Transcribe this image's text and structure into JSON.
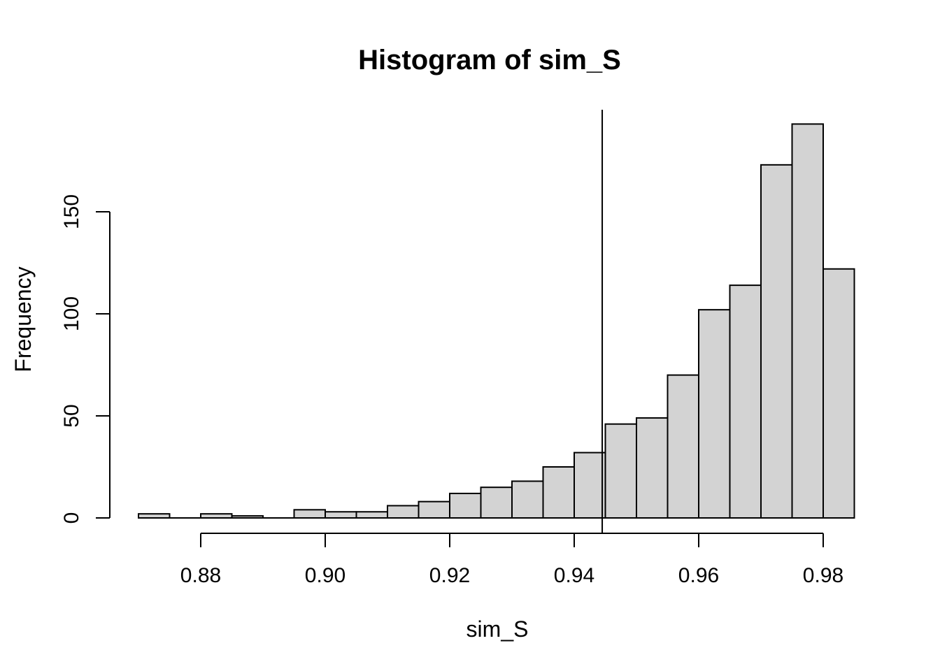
{
  "figure": {
    "title": "Histogram of sim_S",
    "xlabel": "sim_S",
    "ylabel": "Frequency"
  },
  "chart_data": {
    "type": "bar",
    "subtype": "histogram",
    "title": "Histogram of sim_S",
    "xlabel": "sim_S",
    "ylabel": "Frequency",
    "bin_start": 0.87,
    "bin_width": 0.005,
    "counts": [
      2,
      0,
      2,
      1,
      0,
      4,
      3,
      3,
      6,
      8,
      12,
      15,
      18,
      25,
      32,
      46,
      49,
      70,
      102,
      114,
      173,
      193,
      122
    ],
    "total_n": 1000,
    "x_ticks": [
      {
        "value": 0.88,
        "label": "0.88"
      },
      {
        "value": 0.9,
        "label": "0.90"
      },
      {
        "value": 0.92,
        "label": "0.92"
      },
      {
        "value": 0.94,
        "label": "0.94"
      },
      {
        "value": 0.96,
        "label": "0.96"
      },
      {
        "value": 0.98,
        "label": "0.98"
      }
    ],
    "y_ticks": [
      {
        "value": 0,
        "label": "0"
      },
      {
        "value": 50,
        "label": "50"
      },
      {
        "value": 100,
        "label": "100"
      },
      {
        "value": 150,
        "label": "150"
      }
    ],
    "vline_x": 0.9445,
    "xlim": [
      0.8654,
      0.9896
    ],
    "ylim": [
      0,
      200
    ],
    "grid": false,
    "legend": "none",
    "bar_fill": "#d3d3d3",
    "bar_stroke": "#000000",
    "axis_color": "#000000",
    "background": "#ffffff"
  }
}
